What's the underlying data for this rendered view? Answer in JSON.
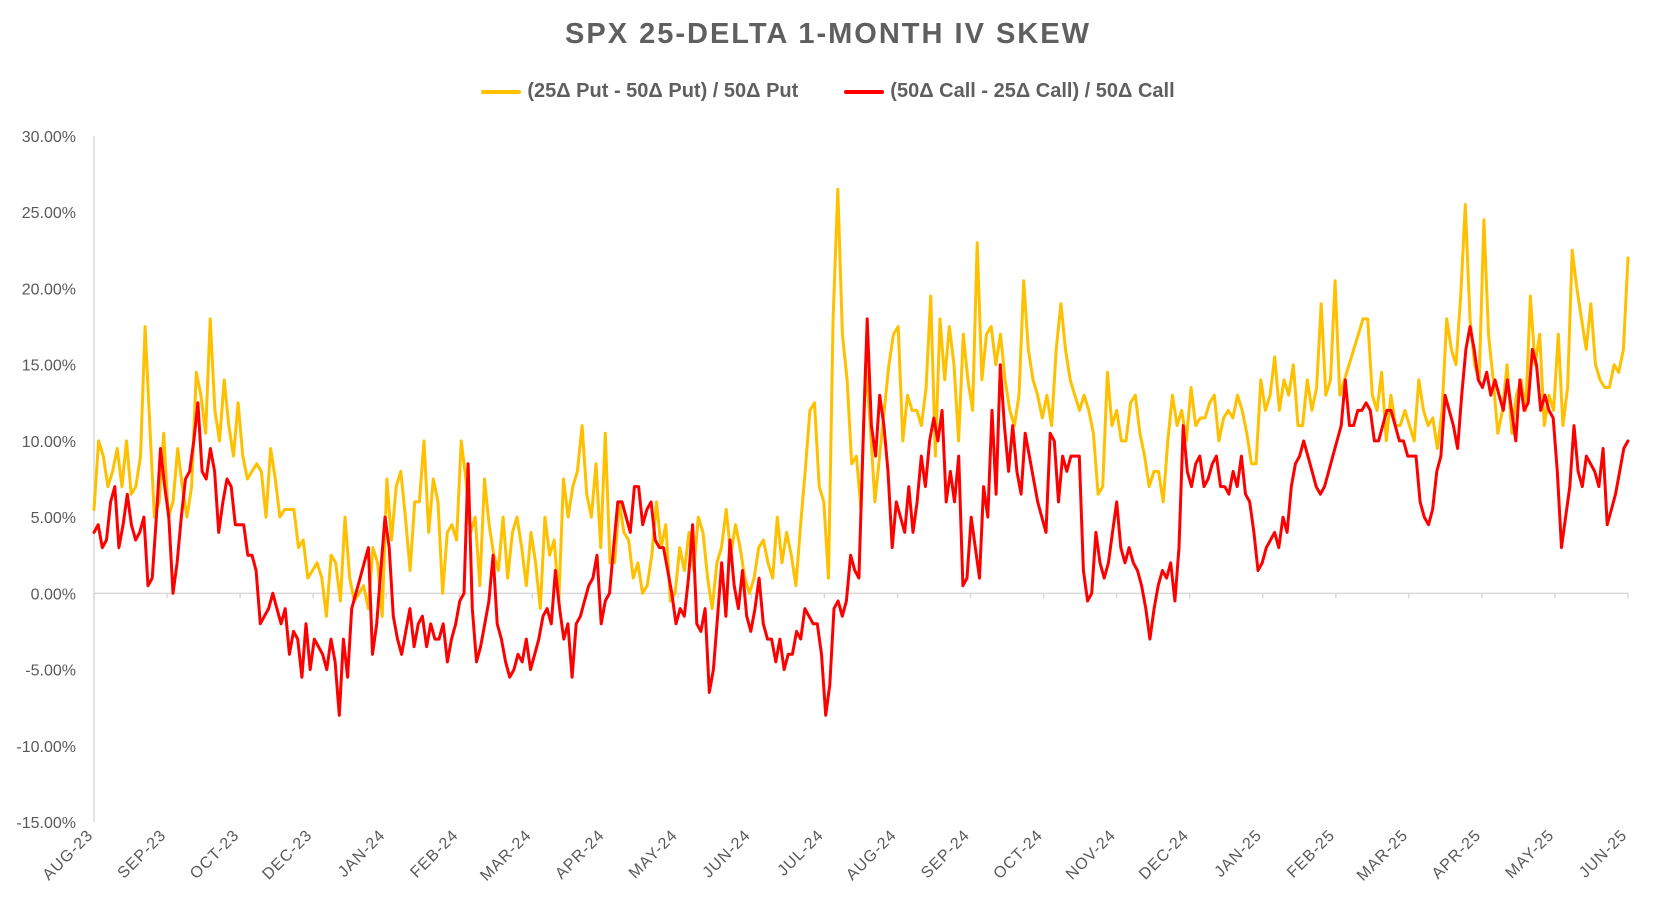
{
  "chart_data": {
    "type": "line",
    "title": "SPX 25-DELTA 1-MONTH IV SKEW",
    "xlabel": "",
    "ylabel": "",
    "ylim": [
      -15,
      30
    ],
    "ytick_values": [
      30,
      25,
      20,
      15,
      10,
      5,
      0,
      -5,
      -10,
      -15
    ],
    "ytick_labels": [
      "30.00%",
      "25.00%",
      "20.00%",
      "15.00%",
      "10.00%",
      "5.00%",
      "0.00%",
      "-5.00%",
      "-10.00%",
      "-15.00%"
    ],
    "x_tick_labels": [
      "AUG-23",
      "SEP-23",
      "OCT-23",
      "DEC-23",
      "JAN-24",
      "FEB-24",
      "MAR-24",
      "APR-24",
      "MAY-24",
      "JUN-24",
      "JUL-24",
      "AUG-24",
      "SEP-24",
      "OCT-24",
      "NOV-24",
      "DEC-24",
      "JAN-25",
      "FEB-25",
      "MAR-25",
      "APR-25",
      "MAY-25",
      "JUN-25"
    ],
    "grid": false,
    "legend_position": "top-center",
    "series": [
      {
        "name": "(25Δ Put - 50Δ Put) / 50Δ Put",
        "color": "#FFC000",
        "values": [
          5.5,
          10,
          9,
          7,
          8,
          9.5,
          7,
          10,
          6.5,
          7,
          9,
          17.5,
          11,
          5,
          6,
          10.5,
          5,
          6,
          9.5,
          7,
          5,
          7,
          14.5,
          13,
          10.5,
          18,
          12,
          10,
          14,
          11,
          9,
          12.5,
          9,
          7.5,
          8,
          8.5,
          8,
          5,
          9.5,
          7.5,
          5,
          5.5,
          5.5,
          5.5,
          3,
          3.5,
          1,
          1.5,
          2,
          1,
          -1.5,
          2.5,
          2,
          -0.5,
          5,
          1,
          -0.5,
          0,
          0.5,
          -1,
          3,
          2,
          -1.5,
          7.5,
          3.5,
          7,
          8,
          5,
          1.5,
          6,
          6,
          10,
          4,
          7.5,
          6,
          0,
          4,
          4.5,
          3.5,
          10,
          7.5,
          4,
          5,
          0.5,
          7.5,
          4.5,
          2.5,
          1.5,
          5,
          1,
          4,
          5,
          3,
          0.5,
          4,
          2,
          -1,
          5,
          2.5,
          3.5,
          -0.5,
          7.5,
          5,
          7,
          8,
          11,
          6.5,
          5,
          8.5,
          3,
          10.5,
          2,
          2,
          6,
          4,
          3.5,
          1,
          2,
          0,
          0.5,
          2.5,
          6,
          3,
          4.5,
          -0.5,
          0,
          3,
          1.5,
          4,
          1.5,
          5,
          4,
          1,
          -1,
          2,
          3,
          5.5,
          2.5,
          4.5,
          3,
          1,
          0,
          1,
          3,
          3.5,
          2,
          1,
          5,
          2,
          4,
          2.5,
          0.5,
          4.5,
          8,
          12,
          12.5,
          7,
          6,
          1,
          18,
          26.5,
          17,
          14,
          8.5,
          9,
          5.5,
          15,
          11,
          6,
          9,
          12,
          15,
          17,
          17.5,
          10,
          13,
          12,
          12,
          11,
          13.5,
          19.5,
          9,
          18,
          14,
          17.5,
          15,
          10,
          17,
          14,
          12,
          23,
          14,
          17,
          17.5,
          15,
          17,
          14,
          12,
          11,
          13,
          20.5,
          16,
          14,
          13,
          11.5,
          13,
          11,
          16,
          19,
          16,
          14,
          13,
          12,
          13,
          12,
          10.5,
          6.5,
          7,
          14.5,
          11,
          12,
          10,
          10,
          12.5,
          13,
          10.5,
          9,
          7,
          8,
          8,
          6,
          10,
          13,
          11,
          12,
          10,
          13.5,
          11,
          11.5,
          11.5,
          12.5,
          13,
          10,
          11.5,
          12,
          11.5,
          13,
          12,
          10.5,
          8.5,
          8.5,
          14,
          12,
          13,
          15.5,
          12,
          14,
          13,
          15,
          11,
          11,
          14,
          12,
          13.5,
          19,
          13,
          14,
          20.5,
          13,
          14,
          15,
          16,
          17,
          18,
          18,
          13,
          12,
          14.5,
          10,
          13,
          11,
          11,
          12,
          11,
          10,
          14,
          12,
          11,
          11.5,
          9.5,
          12,
          18,
          16,
          15,
          19.5,
          25.5,
          18,
          15,
          14,
          24.5,
          17,
          14,
          10.5,
          12,
          15,
          10.5,
          13,
          14,
          12,
          19.5,
          15,
          17,
          11,
          13,
          12,
          17,
          11,
          13.5,
          22.5,
          20,
          18,
          16,
          19,
          15,
          14,
          13.5,
          13.5,
          15,
          14.5,
          16,
          22
        ]
      },
      {
        "name": "(50Δ Call - 25Δ Call) / 50Δ Call",
        "color": "#FF0000",
        "values": [
          4,
          4.5,
          3,
          3.5,
          6,
          7,
          3,
          4.5,
          6.5,
          4.5,
          3.5,
          4,
          5,
          0.5,
          1,
          5,
          9.5,
          7,
          5,
          0,
          2,
          5,
          7.5,
          8,
          10,
          12.5,
          8,
          7.5,
          9.5,
          8,
          4,
          6,
          7.5,
          7,
          4.5,
          4.5,
          4.5,
          2.5,
          2.5,
          1.5,
          -2,
          -1.5,
          -1,
          0,
          -1,
          -2,
          -1,
          -4,
          -2.5,
          -3,
          -5.5,
          -2,
          -5,
          -3,
          -3.5,
          -4,
          -5,
          -3,
          -4.5,
          -8,
          -3,
          -5.5,
          -1,
          0,
          1,
          2,
          3,
          -4,
          -2,
          1.5,
          5,
          3,
          -1.5,
          -3,
          -4,
          -2.5,
          -1,
          -3.5,
          -2,
          -1.5,
          -3.5,
          -2,
          -3,
          -3,
          -2,
          -4.5,
          -3,
          -2,
          -0.5,
          0,
          8.5,
          -1,
          -4.5,
          -3.5,
          -2,
          -0.5,
          2.5,
          -2,
          -3,
          -4.5,
          -5.5,
          -5,
          -4,
          -4.5,
          -3,
          -5,
          -4,
          -3,
          -1.5,
          -1,
          -2,
          1.5,
          -1,
          -3,
          -2,
          -5.5,
          -2,
          -1.5,
          -0.5,
          0.5,
          1,
          2.5,
          -2,
          -0.5,
          0,
          3,
          6,
          6,
          5,
          4,
          7,
          7,
          4.5,
          5.5,
          6,
          3.5,
          3,
          3,
          1.5,
          0,
          -2,
          -1,
          -1.5,
          1,
          4.5,
          -2,
          -2.5,
          -1,
          -6.5,
          -5,
          -1.5,
          2,
          -1.5,
          3.5,
          0.5,
          -1,
          1.5,
          -1.5,
          -2.5,
          -1,
          1,
          -2,
          -3,
          -3,
          -4.5,
          -3,
          -5,
          -4,
          -4,
          -2.5,
          -3,
          -1,
          -1.5,
          -2,
          -2,
          -4,
          -8,
          -6,
          -1,
          -0.5,
          -1.5,
          -0.5,
          2.5,
          1.5,
          1,
          10,
          18,
          11,
          9,
          13,
          11,
          8,
          3,
          6,
          5,
          4,
          7,
          4,
          6,
          9,
          7,
          10,
          11.5,
          10,
          12,
          6,
          8,
          6,
          9,
          0.5,
          1,
          5,
          3,
          1,
          7,
          5,
          12,
          6.5,
          15,
          11,
          8,
          11,
          8,
          6.5,
          10.5,
          9,
          7.5,
          6,
          5,
          4,
          10.5,
          10,
          6,
          9,
          8,
          9,
          9,
          9,
          1.5,
          -0.5,
          0,
          4,
          2,
          1,
          2,
          4,
          6,
          3,
          2,
          3,
          2,
          1.5,
          0.5,
          -1,
          -3,
          -1,
          0.5,
          1.5,
          1,
          2,
          -0.5,
          3,
          11,
          8,
          7,
          8.5,
          9,
          7,
          7.5,
          8.5,
          9,
          7,
          7,
          6.5,
          8,
          7,
          9,
          6.5,
          6,
          4,
          1.5,
          2,
          3,
          3.5,
          4,
          3,
          5,
          4,
          7,
          8.5,
          9,
          10,
          9,
          8,
          7,
          6.5,
          7,
          8,
          9,
          10,
          11,
          14,
          11,
          11,
          12,
          12,
          12.5,
          12,
          10,
          10,
          11,
          12,
          12,
          11,
          10,
          10,
          9,
          9,
          9,
          6,
          5,
          4.5,
          5.5,
          8,
          9,
          13,
          12,
          11,
          9.5,
          13,
          16,
          17.5,
          16,
          14,
          13.5,
          14.5,
          13,
          14,
          13,
          12,
          14,
          12,
          10,
          14,
          12,
          12.5,
          16,
          15,
          12,
          13,
          12,
          11.5,
          8,
          3,
          5,
          7,
          11,
          8,
          7,
          9,
          8.5,
          8,
          7,
          9.5,
          4.5,
          5.5,
          6.5,
          8,
          9.5,
          10
        ]
      }
    ]
  }
}
